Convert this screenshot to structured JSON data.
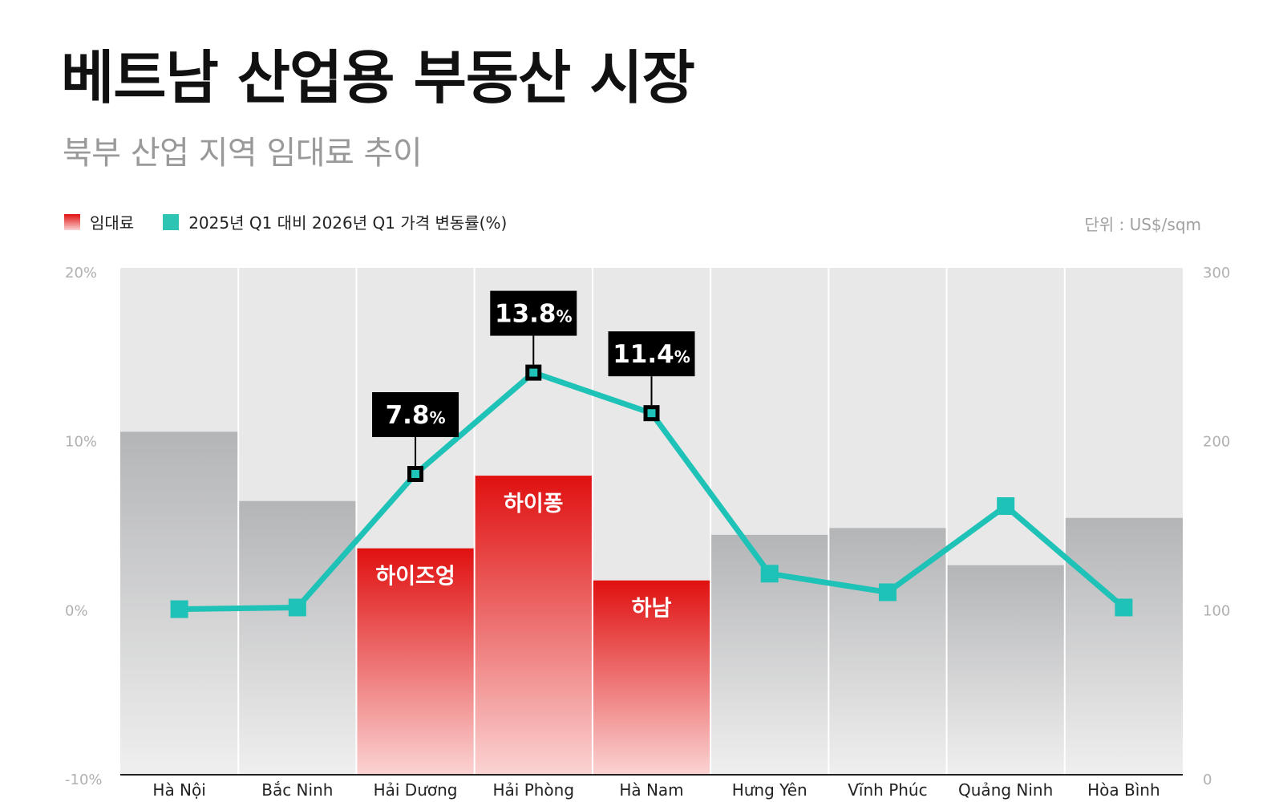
{
  "header": {
    "title": "베트남 산업용 부동산 시장",
    "subtitle": "북부 산업 지역 임대료 추이"
  },
  "legend": {
    "rent_label": "임대료",
    "change_label": "2025년 Q1 대비 2026년 Q1 가격 변동률(%)",
    "unit": "단위 : US$/sqm"
  },
  "colors": {
    "highlight_bar": "#e01010",
    "neutral_bar": "#b5b6b8",
    "line": "#1ec2b6",
    "panel_bg": "#e8e8e8"
  },
  "chart_data": {
    "type": "bar",
    "combo_with": "line",
    "categories": [
      "Hà Nội",
      "Bắc Ninh",
      "Hải Dương",
      "Hải Phòng",
      "Hà Nam",
      "Hưng Yên",
      "Vĩnh Phúc",
      "Quảng Ninh",
      "Hòa Bình"
    ],
    "bar_labels": [
      "",
      "",
      "하이즈엉",
      "하이퐁",
      "하남",
      "",
      "",
      "",
      ""
    ],
    "highlighted": [
      false,
      false,
      true,
      true,
      true,
      false,
      false,
      false,
      false
    ],
    "series": [
      {
        "name": "임대료",
        "axis": "right",
        "values": [
          203,
          162,
          134,
          177,
          115,
          142,
          146,
          124,
          152
        ]
      },
      {
        "name": "2025년 Q1 대비 2026년 Q1 가격 변동률(%)",
        "axis": "left",
        "values": [
          -0.2,
          -0.1,
          7.8,
          13.8,
          11.4,
          1.9,
          0.8,
          5.9,
          -0.1
        ]
      }
    ],
    "line_labels": [
      "",
      "",
      "7.8",
      "13.8",
      "11.4",
      "",
      "",
      "",
      ""
    ],
    "line_label_suffix": "%",
    "left_axis": {
      "ticks": [
        "20%",
        "10%",
        "0%",
        "-10%"
      ],
      "ylim": [
        -10,
        20
      ]
    },
    "right_axis": {
      "ticks": [
        "300",
        "200",
        "100",
        "0"
      ],
      "ylim": [
        0,
        300
      ]
    },
    "grid": false
  }
}
